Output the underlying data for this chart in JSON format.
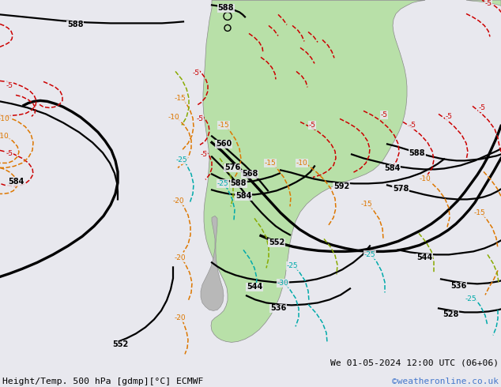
{
  "title_left": "Height/Temp. 500 hPa [gdmp][°C] ECMWF",
  "title_right": "We 01-05-2024 12:00 UTC (06+06)",
  "watermark": "©weatheronline.co.uk",
  "bg_color": "#e8e8ee",
  "land_green": "#b8e0a8",
  "land_gray": "#b8b8b8",
  "watermark_color": "#4477cc",
  "figsize": [
    6.34,
    4.9
  ],
  "dpi": 100
}
